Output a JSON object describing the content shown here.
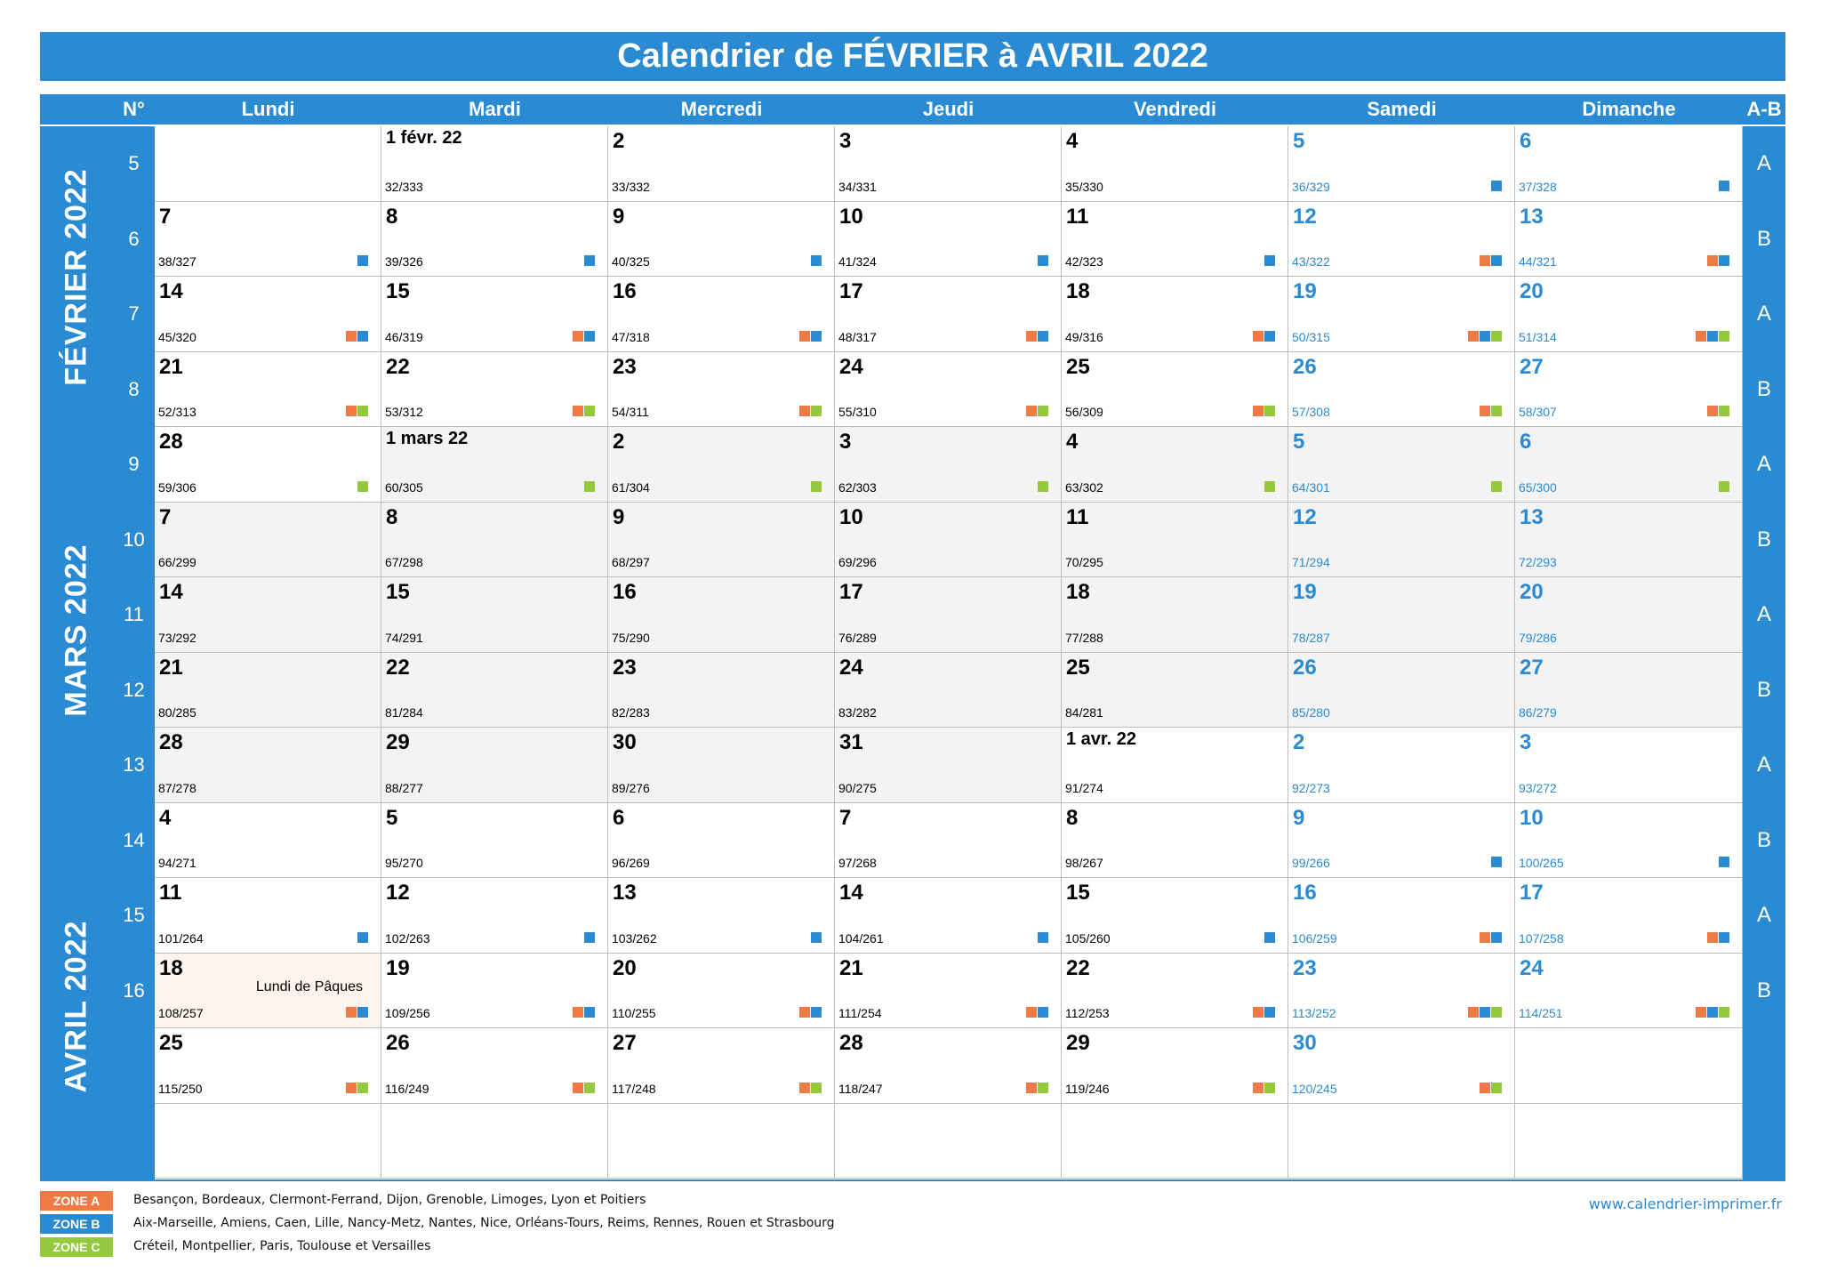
{
  "title": "Calendrier de FÉVRIER à AVRIL 2022",
  "header": {
    "week": "N°",
    "days": [
      "Lundi",
      "Mardi",
      "Mercredi",
      "Jeudi",
      "Vendredi",
      "Samedi",
      "Dimanche"
    ],
    "ab": "A-B"
  },
  "months": [
    "FÉVRIER 2022",
    "MARS 2022",
    "AVRIL 2022"
  ],
  "colors": {
    "accent": "#2a8ad2",
    "zone_a": "#ef7a45",
    "zone_b": "#2a8ad2",
    "zone_c": "#94c93d"
  },
  "weeks": [
    {
      "num": "5",
      "ab": "A",
      "days": [
        null,
        {
          "d": "1 févr. 22",
          "y": "32/333",
          "z": []
        },
        {
          "d": "2",
          "y": "33/332",
          "z": []
        },
        {
          "d": "3",
          "y": "34/331",
          "z": []
        },
        {
          "d": "4",
          "y": "35/330",
          "z": []
        },
        {
          "d": "5",
          "y": "36/329",
          "z": [
            "B"
          ]
        },
        {
          "d": "6",
          "y": "37/328",
          "z": [
            "B"
          ]
        }
      ]
    },
    {
      "num": "6",
      "ab": "B",
      "days": [
        {
          "d": "7",
          "y": "38/327",
          "z": [
            "B"
          ]
        },
        {
          "d": "8",
          "y": "39/326",
          "z": [
            "B"
          ]
        },
        {
          "d": "9",
          "y": "40/325",
          "z": [
            "B"
          ]
        },
        {
          "d": "10",
          "y": "41/324",
          "z": [
            "B"
          ]
        },
        {
          "d": "11",
          "y": "42/323",
          "z": [
            "B"
          ]
        },
        {
          "d": "12",
          "y": "43/322",
          "z": [
            "A",
            "B"
          ]
        },
        {
          "d": "13",
          "y": "44/321",
          "z": [
            "A",
            "B"
          ]
        }
      ]
    },
    {
      "num": "7",
      "ab": "A",
      "days": [
        {
          "d": "14",
          "y": "45/320",
          "z": [
            "A",
            "B"
          ]
        },
        {
          "d": "15",
          "y": "46/319",
          "z": [
            "A",
            "B"
          ]
        },
        {
          "d": "16",
          "y": "47/318",
          "z": [
            "A",
            "B"
          ]
        },
        {
          "d": "17",
          "y": "48/317",
          "z": [
            "A",
            "B"
          ]
        },
        {
          "d": "18",
          "y": "49/316",
          "z": [
            "A",
            "B"
          ]
        },
        {
          "d": "19",
          "y": "50/315",
          "z": [
            "A",
            "B",
            "C"
          ]
        },
        {
          "d": "20",
          "y": "51/314",
          "z": [
            "A",
            "B",
            "C"
          ]
        }
      ]
    },
    {
      "num": "8",
      "ab": "B",
      "days": [
        {
          "d": "21",
          "y": "52/313",
          "z": [
            "A",
            "C"
          ]
        },
        {
          "d": "22",
          "y": "53/312",
          "z": [
            "A",
            "C"
          ]
        },
        {
          "d": "23",
          "y": "54/311",
          "z": [
            "A",
            "C"
          ]
        },
        {
          "d": "24",
          "y": "55/310",
          "z": [
            "A",
            "C"
          ]
        },
        {
          "d": "25",
          "y": "56/309",
          "z": [
            "A",
            "C"
          ]
        },
        {
          "d": "26",
          "y": "57/308",
          "z": [
            "A",
            "C"
          ]
        },
        {
          "d": "27",
          "y": "58/307",
          "z": [
            "A",
            "C"
          ]
        }
      ]
    },
    {
      "num": "9",
      "ab": "A",
      "days": [
        {
          "d": "28",
          "y": "59/306",
          "z": [
            "C"
          ]
        },
        {
          "d": "1 mars 22",
          "y": "60/305",
          "z": [
            "C"
          ]
        },
        {
          "d": "2",
          "y": "61/304",
          "z": [
            "C"
          ]
        },
        {
          "d": "3",
          "y": "62/303",
          "z": [
            "C"
          ]
        },
        {
          "d": "4",
          "y": "63/302",
          "z": [
            "C"
          ]
        },
        {
          "d": "5",
          "y": "64/301",
          "z": [
            "C"
          ]
        },
        {
          "d": "6",
          "y": "65/300",
          "z": [
            "C"
          ]
        }
      ]
    },
    {
      "num": "10",
      "ab": "B",
      "days": [
        {
          "d": "7",
          "y": "66/299",
          "z": []
        },
        {
          "d": "8",
          "y": "67/298",
          "z": []
        },
        {
          "d": "9",
          "y": "68/297",
          "z": []
        },
        {
          "d": "10",
          "y": "69/296",
          "z": []
        },
        {
          "d": "11",
          "y": "70/295",
          "z": []
        },
        {
          "d": "12",
          "y": "71/294",
          "z": []
        },
        {
          "d": "13",
          "y": "72/293",
          "z": []
        }
      ]
    },
    {
      "num": "11",
      "ab": "A",
      "days": [
        {
          "d": "14",
          "y": "73/292",
          "z": []
        },
        {
          "d": "15",
          "y": "74/291",
          "z": []
        },
        {
          "d": "16",
          "y": "75/290",
          "z": []
        },
        {
          "d": "17",
          "y": "76/289",
          "z": []
        },
        {
          "d": "18",
          "y": "77/288",
          "z": []
        },
        {
          "d": "19",
          "y": "78/287",
          "z": []
        },
        {
          "d": "20",
          "y": "79/286",
          "z": []
        }
      ]
    },
    {
      "num": "12",
      "ab": "B",
      "days": [
        {
          "d": "21",
          "y": "80/285",
          "z": []
        },
        {
          "d": "22",
          "y": "81/284",
          "z": []
        },
        {
          "d": "23",
          "y": "82/283",
          "z": []
        },
        {
          "d": "24",
          "y": "83/282",
          "z": []
        },
        {
          "d": "25",
          "y": "84/281",
          "z": []
        },
        {
          "d": "26",
          "y": "85/280",
          "z": []
        },
        {
          "d": "27",
          "y": "86/279",
          "z": []
        }
      ]
    },
    {
      "num": "13",
      "ab": "A",
      "days": [
        {
          "d": "28",
          "y": "87/278",
          "z": []
        },
        {
          "d": "29",
          "y": "88/277",
          "z": []
        },
        {
          "d": "30",
          "y": "89/276",
          "z": []
        },
        {
          "d": "31",
          "y": "90/275",
          "z": []
        },
        {
          "d": "1 avr. 22",
          "y": "91/274",
          "z": []
        },
        {
          "d": "2",
          "y": "92/273",
          "z": []
        },
        {
          "d": "3",
          "y": "93/272",
          "z": []
        }
      ]
    },
    {
      "num": "14",
      "ab": "B",
      "days": [
        {
          "d": "4",
          "y": "94/271",
          "z": []
        },
        {
          "d": "5",
          "y": "95/270",
          "z": []
        },
        {
          "d": "6",
          "y": "96/269",
          "z": []
        },
        {
          "d": "7",
          "y": "97/268",
          "z": []
        },
        {
          "d": "8",
          "y": "98/267",
          "z": []
        },
        {
          "d": "9",
          "y": "99/266",
          "z": [
            "B"
          ]
        },
        {
          "d": "10",
          "y": "100/265",
          "z": [
            "B"
          ]
        }
      ]
    },
    {
      "num": "15",
      "ab": "A",
      "days": [
        {
          "d": "11",
          "y": "101/264",
          "z": [
            "B"
          ]
        },
        {
          "d": "12",
          "y": "102/263",
          "z": [
            "B"
          ]
        },
        {
          "d": "13",
          "y": "103/262",
          "z": [
            "B"
          ]
        },
        {
          "d": "14",
          "y": "104/261",
          "z": [
            "B"
          ]
        },
        {
          "d": "15",
          "y": "105/260",
          "z": [
            "B"
          ]
        },
        {
          "d": "16",
          "y": "106/259",
          "z": [
            "A",
            "B"
          ]
        },
        {
          "d": "17",
          "y": "107/258",
          "z": [
            "A",
            "B"
          ]
        }
      ]
    },
    {
      "num": "16",
      "ab": "B",
      "days": [
        {
          "d": "18",
          "y": "108/257",
          "z": [
            "A",
            "B"
          ],
          "event": "Lundi de Pâques"
        },
        {
          "d": "19",
          "y": "109/256",
          "z": [
            "A",
            "B"
          ]
        },
        {
          "d": "20",
          "y": "110/255",
          "z": [
            "A",
            "B"
          ]
        },
        {
          "d": "21",
          "y": "111/254",
          "z": [
            "A",
            "B"
          ]
        },
        {
          "d": "22",
          "y": "112/253",
          "z": [
            "A",
            "B"
          ]
        },
        {
          "d": "23",
          "y": "113/252",
          "z": [
            "A",
            "B",
            "C"
          ]
        },
        {
          "d": "24",
          "y": "114/251",
          "z": [
            "A",
            "B",
            "C"
          ]
        }
      ]
    },
    {
      "num": "",
      "ab": "",
      "days": [
        {
          "d": "25",
          "y": "115/250",
          "z": [
            "A",
            "C"
          ]
        },
        {
          "d": "26",
          "y": "116/249",
          "z": [
            "A",
            "C"
          ]
        },
        {
          "d": "27",
          "y": "117/248",
          "z": [
            "A",
            "C"
          ]
        },
        {
          "d": "28",
          "y": "118/247",
          "z": [
            "A",
            "C"
          ]
        },
        {
          "d": "29",
          "y": "119/246",
          "z": [
            "A",
            "C"
          ]
        },
        {
          "d": "30",
          "y": "120/245",
          "z": [
            "A",
            "C"
          ]
        },
        null
      ]
    },
    {
      "num": "",
      "ab": "",
      "days": [
        null,
        null,
        null,
        null,
        null,
        null,
        null
      ]
    }
  ],
  "zones": [
    {
      "label": "ZONE A",
      "cities": "Besançon, Bordeaux, Clermont-Ferrand, Dijon, Grenoble, Limoges, Lyon et Poitiers"
    },
    {
      "label": "ZONE B",
      "cities": "Aix-Marseille, Amiens, Caen, Lille, Nancy-Metz, Nantes, Nice, Orléans-Tours, Reims, Rennes, Rouen et Strasbourg"
    },
    {
      "label": "ZONE C",
      "cities": "Créteil, Montpellier, Paris, Toulouse et Versailles"
    }
  ],
  "website": "www.calendrier-imprimer.fr"
}
